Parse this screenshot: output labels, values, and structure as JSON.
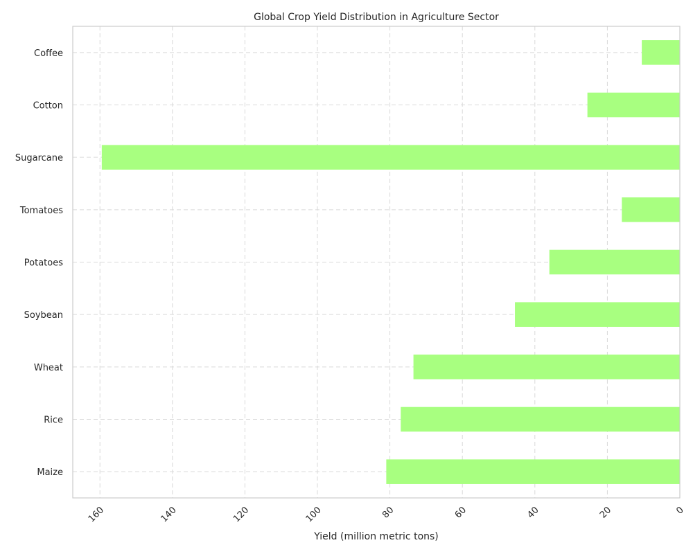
{
  "chart_data": {
    "type": "bar",
    "orientation": "horizontal",
    "x_axis_inverted": true,
    "title": "Global Crop Yield Distribution in Agriculture Sector",
    "xlabel": "Yield (million metric tons)",
    "ylabel": "",
    "categories": [
      "Maize",
      "Rice",
      "Wheat",
      "Soybean",
      "Potatoes",
      "Tomatoes",
      "Sugarcane",
      "Cotton",
      "Coffee"
    ],
    "values": [
      81,
      77,
      73.5,
      45.5,
      36,
      16,
      159.5,
      25.5,
      10.5
    ],
    "xlim": [
      167.5,
      0
    ],
    "xticks": [
      160,
      140,
      120,
      100,
      80,
      60,
      40,
      20,
      0
    ],
    "grid": true,
    "bar_color": "#a8ff80"
  }
}
